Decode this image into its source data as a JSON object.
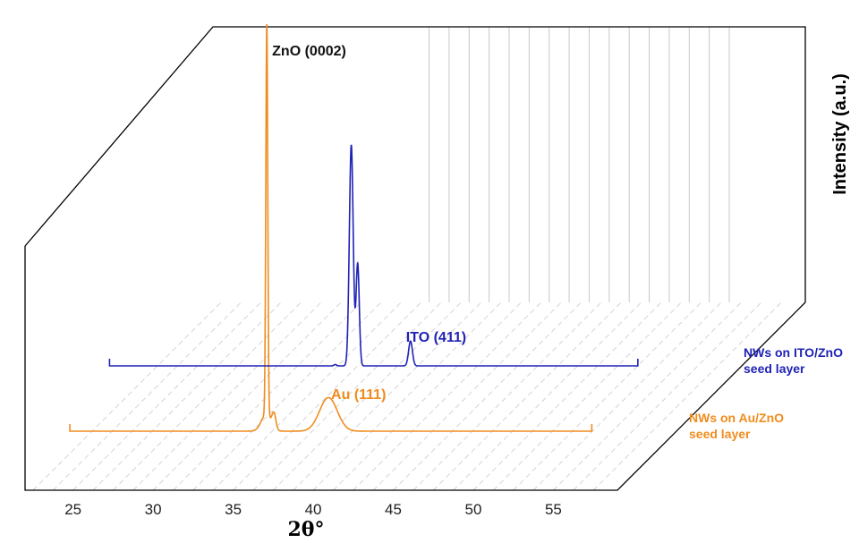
{
  "chart_data": {
    "type": "line",
    "title": "",
    "xlabel": "2θ°",
    "ylabel": "Intensity (a.u.)",
    "xlim": [
      22,
      59
    ],
    "x_ticks": [
      "25",
      "30",
      "35",
      "40",
      "45",
      "50",
      "55"
    ],
    "grid": true,
    "series": [
      {
        "name": "NWs on Au/ZnO seed layer",
        "color": "#f08c1e",
        "x_range": [
          24.8,
          57.4
        ],
        "peaks": [
          {
            "x": 37.1,
            "height": 100,
            "width": 0.06
          },
          {
            "x": 37.05,
            "height": 4.2,
            "width": 0.3
          },
          {
            "x": 37.55,
            "height": 3.8,
            "width": 0.12
          },
          {
            "x": 40.95,
            "height": 8.6,
            "width": 0.55
          }
        ],
        "annotations": [
          {
            "text": "ZnO (0002)",
            "x": 37.1
          },
          {
            "text": "Au (111)",
            "x": 40.95
          }
        ]
      },
      {
        "name": "NWs on ITO/ZnO seed layer",
        "color": "#1f22b5",
        "x_range": [
          25.6,
          58.6
        ],
        "peaks": [
          {
            "x": 39.7,
            "height": 0.4,
            "width": 0.08
          },
          {
            "x": 40.7,
            "height": 65,
            "width": 0.12
          },
          {
            "x": 41.1,
            "height": 30,
            "width": 0.1
          },
          {
            "x": 44.4,
            "height": 7.3,
            "width": 0.12
          }
        ],
        "annotations": [
          {
            "text": "ITO (411)",
            "x": 44.4
          }
        ]
      }
    ]
  }
}
